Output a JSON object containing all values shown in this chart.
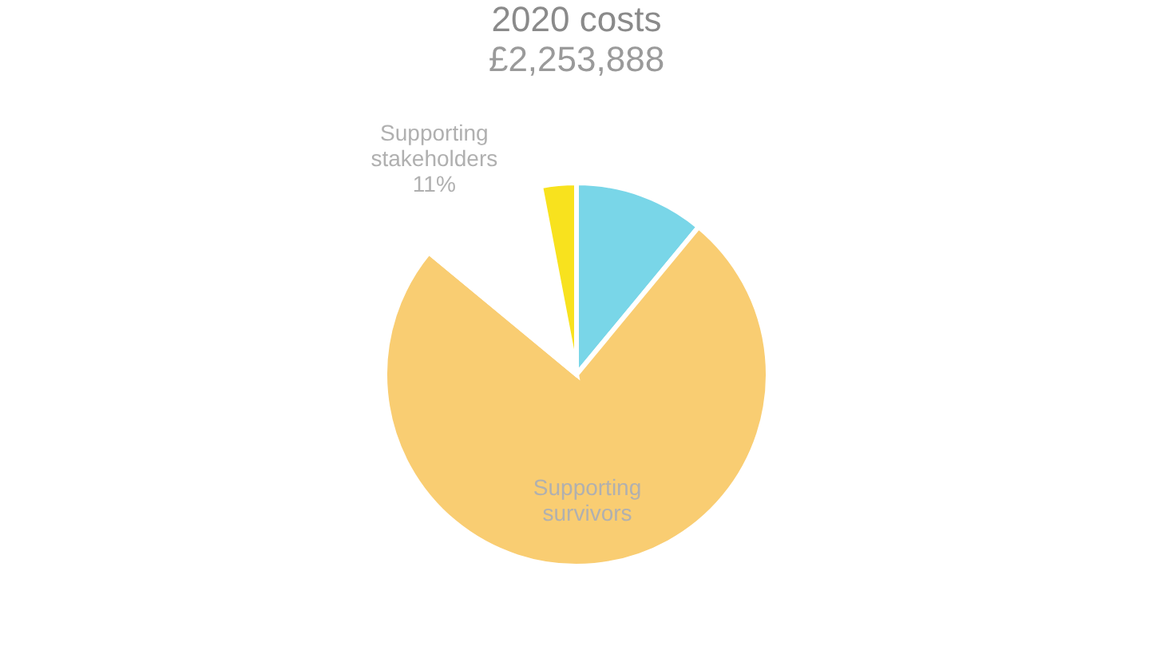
{
  "chart_data": {
    "type": "pie",
    "title": "2020 costs",
    "subtitle": "£2,253,888",
    "categories": [
      null,
      "Supporting survivors",
      "Supporting stakeholders",
      null
    ],
    "values": [
      11,
      75,
      11,
      3
    ],
    "value_labels": [
      null,
      null,
      "11%",
      null
    ],
    "colors": [
      "#79d6e8",
      "#f9cd72",
      "#ffffff",
      "#f8e21e"
    ],
    "legend": false
  }
}
